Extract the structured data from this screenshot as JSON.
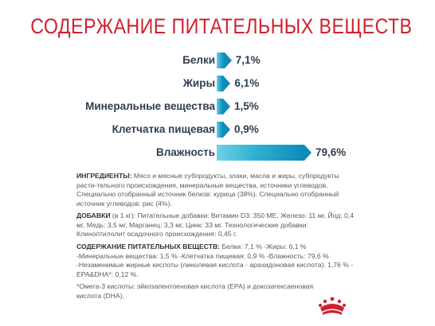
{
  "title": "СОДЕРЖАНИЕ ПИТАТЕЛЬНЫХ ВЕЩЕСТВ",
  "chart_data": {
    "type": "bar",
    "categories": [
      "Белки",
      "Жиры",
      "Минеральные вещества",
      "Клетчатка пищевая",
      "Влажность"
    ],
    "values": [
      7.1,
      6.1,
      1.5,
      0.9,
      79.6
    ],
    "value_labels": [
      "7,1%",
      "6,1%",
      "1,5%",
      "0,9%",
      "79,6%"
    ],
    "colors": {
      "bar_start": "#6fd0e6",
      "bar_end": "#0d8bb9",
      "title": "#d0202f"
    }
  },
  "ingredients": {
    "heading": "ИНГРЕДИЕНТЫ:",
    "text": " Мясо и мясные субпродукты, злаки, масла и жиры, субпродукты расти-тельного происхождения, минеральные вещества, источники углеводов. Специально отобранный источник белков: курица (38%). Специально отобранный источник углеводов: рис (4%)."
  },
  "additives": {
    "heading": "ДОБАВКИ",
    "text": " (в 1 кг): Питательные добавки: Витамин D3: 350 МЕ, Железо: 11 мг, Йод: 0,4 мг, Медь: 3,5 мг, Марганец: 3,3 мг, Цинк: 33 мг. Технологические добавки: Клиноптилолит осадочного происхождения: 0,45 г."
  },
  "nutrients": {
    "heading": "СОДЕРЖАНИЕ ПИТАТЕЛЬНЫХ ВЕЩЕСТВ:",
    "text": " Белки: 7,1 % -Жиры: 6,1 % -Минеральные вещества: 1,5 % -Клетчатка пищевая: 0,9 % -Влажность: 79,6 % -Незаменимые жирные кислоты (линолевая кислота - арахидоновая кислота): 1,76 % - EPA&DHA*: 0,12 %."
  },
  "footnote": "*Омега-3 кислоты: эйкозапентоеновая кислота (EPA) и докозагексаеновая кислота (DHA).",
  "logo_icon": "royal-canin-crown-icon"
}
